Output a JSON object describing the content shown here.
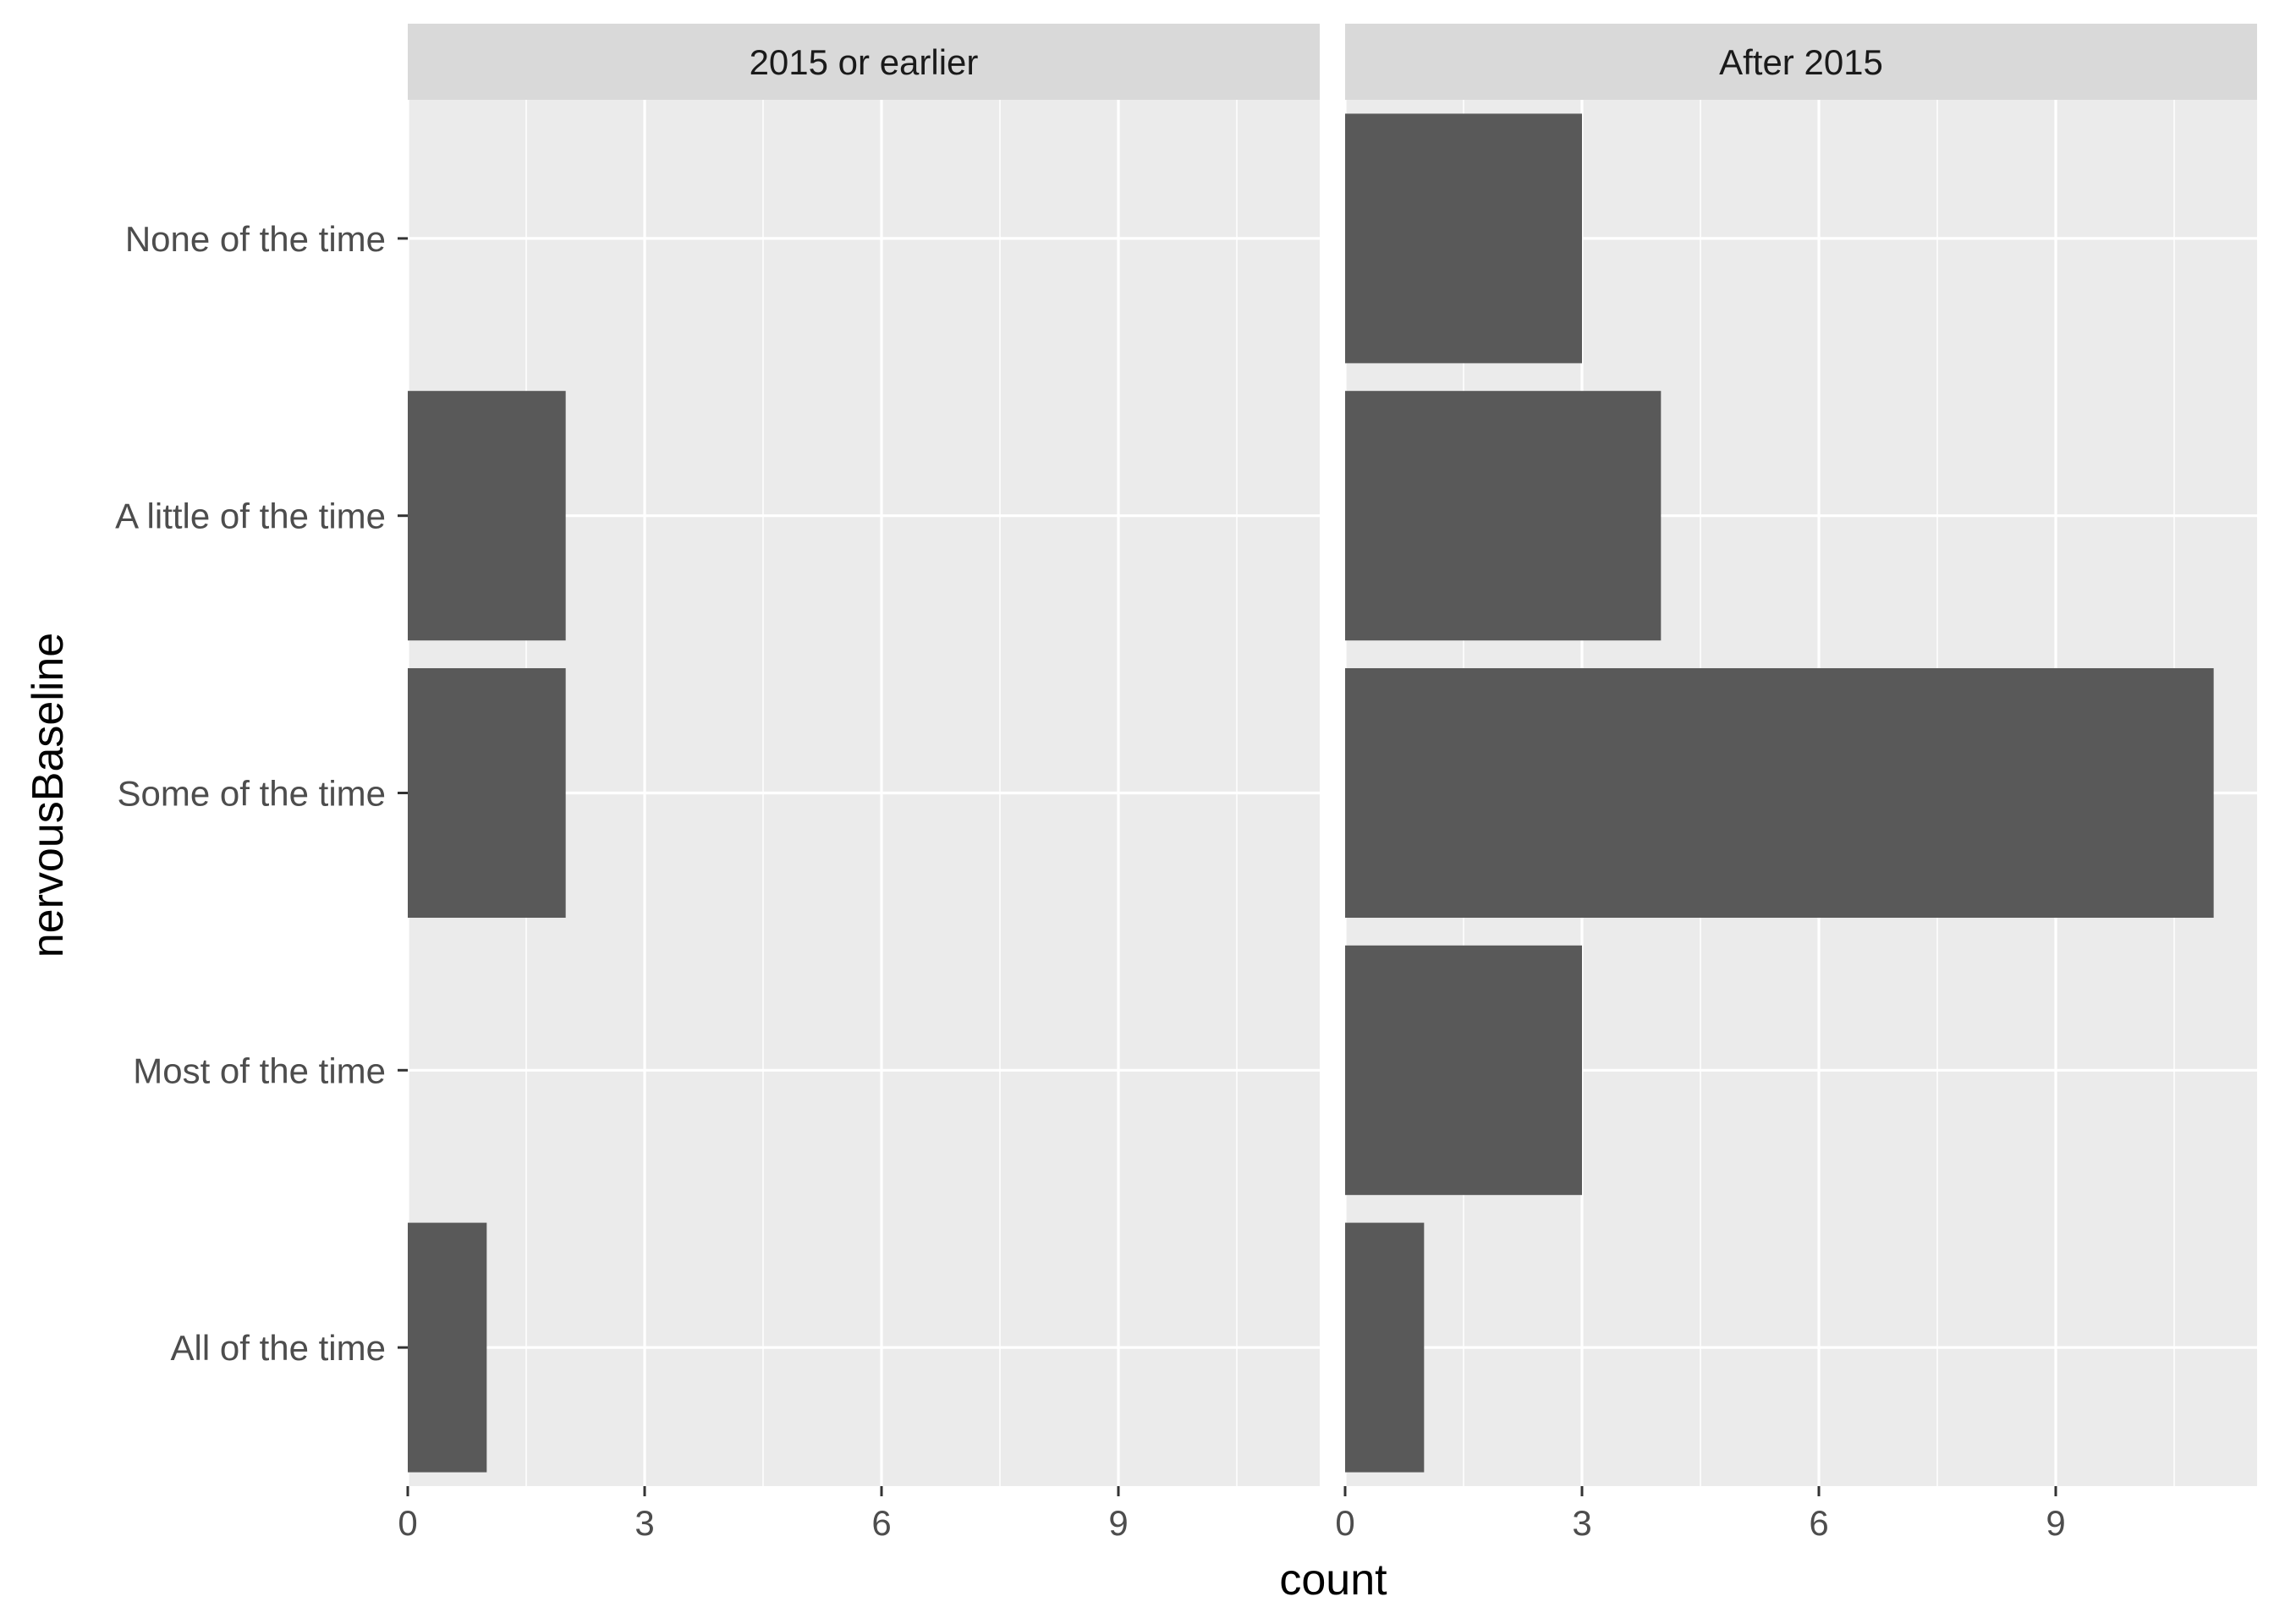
{
  "chart_data": {
    "type": "bar",
    "orientation": "horizontal",
    "facet_variable": "period",
    "xlabel": "count",
    "ylabel": "nervousBaseline",
    "categories": [
      "None of the time",
      "A little of the time",
      "Some of the time",
      "Most of the time",
      "All of the time"
    ],
    "xlim": [
      0,
      11.55
    ],
    "x_ticks": [
      0,
      3,
      6,
      9
    ],
    "grid": true,
    "legend": "none",
    "colors": {
      "panel_background": "#ebebeb",
      "strip_background": "#d9d9d9",
      "bar_fill": "#595959",
      "grid": "#ffffff"
    },
    "panels": [
      {
        "title": "2015 or earlier",
        "values": [
          0,
          2,
          2,
          0,
          1
        ]
      },
      {
        "title": "After 2015",
        "values": [
          3,
          4,
          11,
          3,
          1
        ]
      }
    ]
  }
}
